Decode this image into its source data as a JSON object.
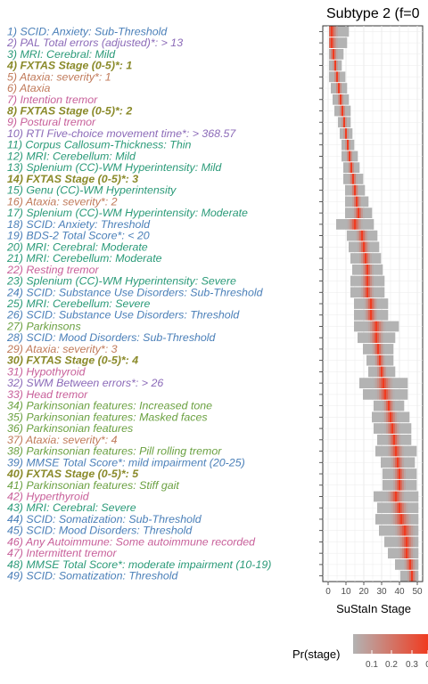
{
  "chart_data": {
    "type": "heatmap",
    "title": "Subtype 2 (f=0",
    "xlabel": "SuStaIn Stage",
    "xlim": [
      0,
      50
    ],
    "x_ticks": [
      "0",
      "10",
      "20",
      "30",
      "40",
      "50"
    ],
    "grid": true,
    "legend": {
      "title": "Pr(stage)",
      "ticks": [
        "0.1",
        "0.2",
        "0.3",
        "0"
      ],
      "low_color": "#b3b3b3",
      "high_color": "#f03b20",
      "placement": "bottom"
    },
    "rows": [
      {
        "label": "1) SCID: Anxiety: Sub-Threshold",
        "color": "#4a7fb8",
        "bold": false,
        "center": 2,
        "spread": 9
      },
      {
        "label": "2) PAL Total errors (adjusted)*: > 13",
        "color": "#8b6ab8",
        "bold": false,
        "center": 2,
        "spread": 8
      },
      {
        "label": "3) MRI: Cerebral: Mild",
        "color": "#2a9a78",
        "bold": false,
        "center": 3,
        "spread": 5
      },
      {
        "label": "4) FXTAS Stage (0-5)*: 1",
        "color": "#8a8a2a",
        "bold": true,
        "center": 4,
        "spread": 3
      },
      {
        "label": "5) Ataxia: severity*: 1",
        "color": "#c07a5a",
        "bold": false,
        "center": 5,
        "spread": 4
      },
      {
        "label": "6) Ataxia",
        "color": "#c07a5a",
        "bold": false,
        "center": 6,
        "spread": 4
      },
      {
        "label": "7) Intention tremor",
        "color": "#c8609a",
        "bold": false,
        "center": 7,
        "spread": 4
      },
      {
        "label": "8) FXTAS Stage (0-5)*: 2",
        "color": "#8a8a2a",
        "bold": true,
        "center": 8,
        "spread": 4
      },
      {
        "label": "9) Postural tremor",
        "color": "#c8609a",
        "bold": false,
        "center": 9,
        "spread": 3
      },
      {
        "label": "10) RTI Five-choice movement time*: > 368.57",
        "color": "#8b6ab8",
        "bold": false,
        "center": 10,
        "spread": 3
      },
      {
        "label": "11) Corpus Callosum-Thickness: Thin",
        "color": "#2a9a78",
        "bold": false,
        "center": 11,
        "spread": 3
      },
      {
        "label": "12) MRI: Cerebellum: Mild",
        "color": "#2a9a78",
        "bold": false,
        "center": 12,
        "spread": 4
      },
      {
        "label": "13) Splenium (CC)-WM Hyperintensity: Mild",
        "color": "#2a9a78",
        "bold": false,
        "center": 13,
        "spread": 4
      },
      {
        "label": "14) FXTAS Stage (0-5)*: 3",
        "color": "#8a8a2a",
        "bold": true,
        "center": 14,
        "spread": 5
      },
      {
        "label": "15) Genu (CC)-WM Hyperintensity",
        "color": "#2a9a78",
        "bold": false,
        "center": 15,
        "spread": 5
      },
      {
        "label": "16) Ataxia: severity*: 2",
        "color": "#c07a5a",
        "bold": false,
        "center": 16,
        "spread": 6
      },
      {
        "label": "17) Splenium (CC)-WM Hyperintensity: Moderate",
        "color": "#2a9a78",
        "bold": false,
        "center": 17,
        "spread": 7
      },
      {
        "label": "18) SCID: Anxiety: Threshold",
        "color": "#4a7fb8",
        "bold": false,
        "center": 15,
        "spread": 10
      },
      {
        "label": "19) BDS-2 Total Score*: < 20",
        "color": "#4a7fb8",
        "bold": false,
        "center": 19,
        "spread": 8
      },
      {
        "label": "20) MRI: Cerebral: Moderate",
        "color": "#2a9a78",
        "bold": false,
        "center": 20,
        "spread": 8
      },
      {
        "label": "21) MRI: Cerebellum: Moderate",
        "color": "#2a9a78",
        "bold": false,
        "center": 21,
        "spread": 8
      },
      {
        "label": "22) Resting tremor",
        "color": "#c8609a",
        "bold": false,
        "center": 22,
        "spread": 8
      },
      {
        "label": "23) Splenium (CC)-WM Hyperintensity: Severe",
        "color": "#2a9a78",
        "bold": false,
        "center": 22,
        "spread": 9
      },
      {
        "label": "24) SCID: Substance Use Disorders: Sub-Threshold",
        "color": "#4a7fb8",
        "bold": false,
        "center": 22,
        "spread": 9
      },
      {
        "label": "25) MRI: Cerebellum: Severe",
        "color": "#2a9a78",
        "bold": false,
        "center": 24,
        "spread": 9
      },
      {
        "label": "26) SCID: Substance Use Disorders: Threshold",
        "color": "#4a7fb8",
        "bold": false,
        "center": 24,
        "spread": 9
      },
      {
        "label": "27) Parkinsons",
        "color": "#6aa040",
        "bold": false,
        "center": 27,
        "spread": 12
      },
      {
        "label": "28) SCID: Mood Disorders: Sub-Threshold",
        "color": "#4a7fb8",
        "bold": false,
        "center": 27,
        "spread": 10
      },
      {
        "label": "29) Ataxia: severity*: 3",
        "color": "#c07a5a",
        "bold": false,
        "center": 28,
        "spread": 8
      },
      {
        "label": "30) FXTAS Stage (0-5)*: 4",
        "color": "#8a8a2a",
        "bold": true,
        "center": 29,
        "spread": 7
      },
      {
        "label": "31) Hypothyroid",
        "color": "#c8609a",
        "bold": false,
        "center": 30,
        "spread": 7
      },
      {
        "label": "32) SWM Between errors*: > 26",
        "color": "#8b6ab8",
        "bold": false,
        "center": 31,
        "spread": 13
      },
      {
        "label": "33) Head tremor",
        "color": "#c8609a",
        "bold": false,
        "center": 32,
        "spread": 12
      },
      {
        "label": "34) Parkinsonian features: Increased tone",
        "color": "#6aa040",
        "bold": false,
        "center": 34,
        "spread": 8
      },
      {
        "label": "35) Parkinsonian features: Masked faces",
        "color": "#6aa040",
        "bold": false,
        "center": 35,
        "spread": 10
      },
      {
        "label": "36) Parkinsonian features",
        "color": "#6aa040",
        "bold": false,
        "center": 36,
        "spread": 10
      },
      {
        "label": "37) Ataxia: severity*: 4",
        "color": "#c07a5a",
        "bold": false,
        "center": 37,
        "spread": 9
      },
      {
        "label": "38) Parkinsonian features: Pill rolling tremor",
        "color": "#6aa040",
        "bold": false,
        "center": 38,
        "spread": 11
      },
      {
        "label": "39) MMSE Total Score*: mild impairment (20-25)",
        "color": "#4a7fb8",
        "bold": false,
        "center": 39,
        "spread": 9
      },
      {
        "label": "40) FXTAS Stage (0-5)*: 5",
        "color": "#8a8a2a",
        "bold": true,
        "center": 40,
        "spread": 9
      },
      {
        "label": "41) Parkinsonian features: Stiff gait",
        "color": "#6aa040",
        "bold": false,
        "center": 40,
        "spread": 9
      },
      {
        "label": "42) Hyperthyroid",
        "color": "#c8609a",
        "bold": false,
        "center": 38,
        "spread": 12
      },
      {
        "label": "43) MRI: Cerebral: Severe",
        "color": "#2a9a78",
        "bold": false,
        "center": 40,
        "spread": 12
      },
      {
        "label": "44) SCID: Somatization: Sub-Threshold",
        "color": "#4a7fb8",
        "bold": false,
        "center": 41,
        "spread": 14
      },
      {
        "label": "45) SCID: Mood Disorders: Threshold",
        "color": "#4a7fb8",
        "bold": false,
        "center": 43,
        "spread": 14
      },
      {
        "label": "46) Any Autoimmune: Some autoimmune recorded",
        "color": "#c8609a",
        "bold": false,
        "center": 44,
        "spread": 12
      },
      {
        "label": "47) Intermittent tremor",
        "color": "#c8609a",
        "bold": false,
        "center": 44,
        "spread": 10
      },
      {
        "label": "48) MMSE Total Score*: moderate impairment (10-19)",
        "color": "#2a9a78",
        "bold": false,
        "center": 46,
        "spread": 8
      },
      {
        "label": "49) SCID: Somatization: Threshold",
        "color": "#4a7fb8",
        "bold": false,
        "center": 47,
        "spread": 6
      }
    ]
  }
}
